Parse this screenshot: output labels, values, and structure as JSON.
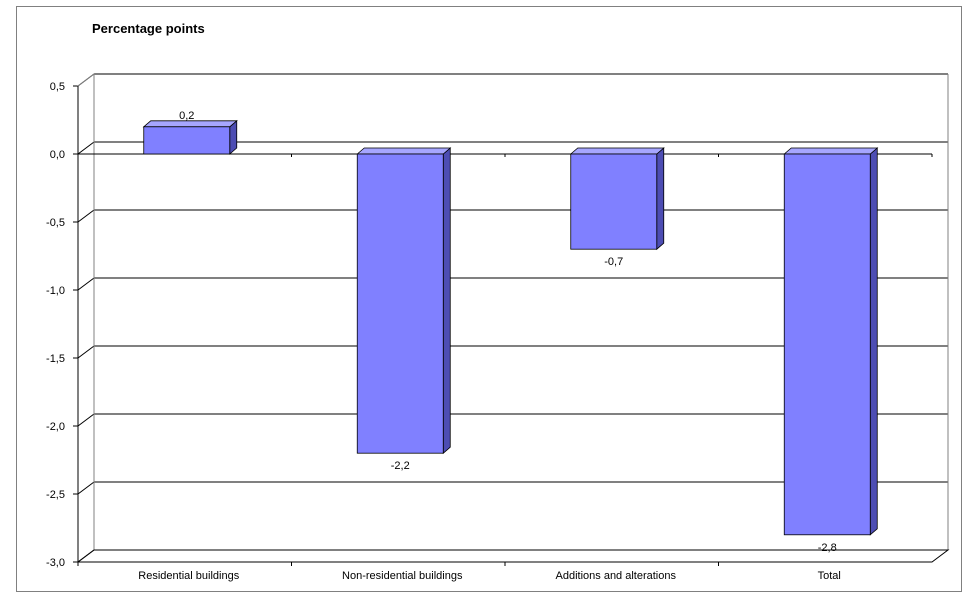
{
  "chart_data": {
    "type": "bar",
    "title": "Percentage points",
    "categories": [
      "Residential buildings",
      "Non-residential buildings",
      "Additions and alterations",
      "Total"
    ],
    "values": [
      0.2,
      -2.2,
      -0.7,
      -2.8
    ],
    "value_labels": [
      "0,2",
      "-2,2",
      "-0,7",
      "-2,8"
    ],
    "yticks": [
      0.5,
      0.0,
      -0.5,
      -1.0,
      -1.5,
      -2.0,
      -2.5,
      -3.0
    ],
    "ytick_labels": [
      "0,5",
      "0,0",
      "-0,5",
      "-1,0",
      "-1,5",
      "-2,0",
      "-2,5",
      "-3,0"
    ],
    "ylim": [
      -3.0,
      0.5
    ],
    "grid": true,
    "legend": "none",
    "bar_color": "#8080ff",
    "bar_side_color": "#4d4db3",
    "bar_top_color": "#a6a6ff"
  }
}
